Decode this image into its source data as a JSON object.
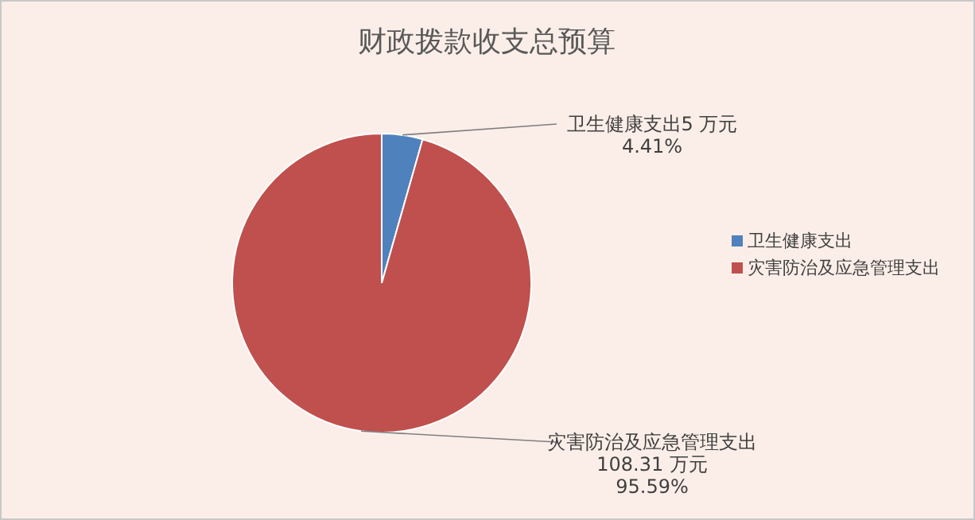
{
  "chart_data": {
    "type": "pie",
    "title": "财政拨款收支总预算",
    "categories": [
      "卫生健康支出",
      "灾害防治及应急管理支出"
    ],
    "values": [
      5,
      108.31
    ],
    "colors": [
      "#4f81bd",
      "#c0504d"
    ],
    "value_labels": [
      "5 万元\n4.41%",
      "108.31 万元\n95.59%"
    ],
    "legend": "right"
  }
}
